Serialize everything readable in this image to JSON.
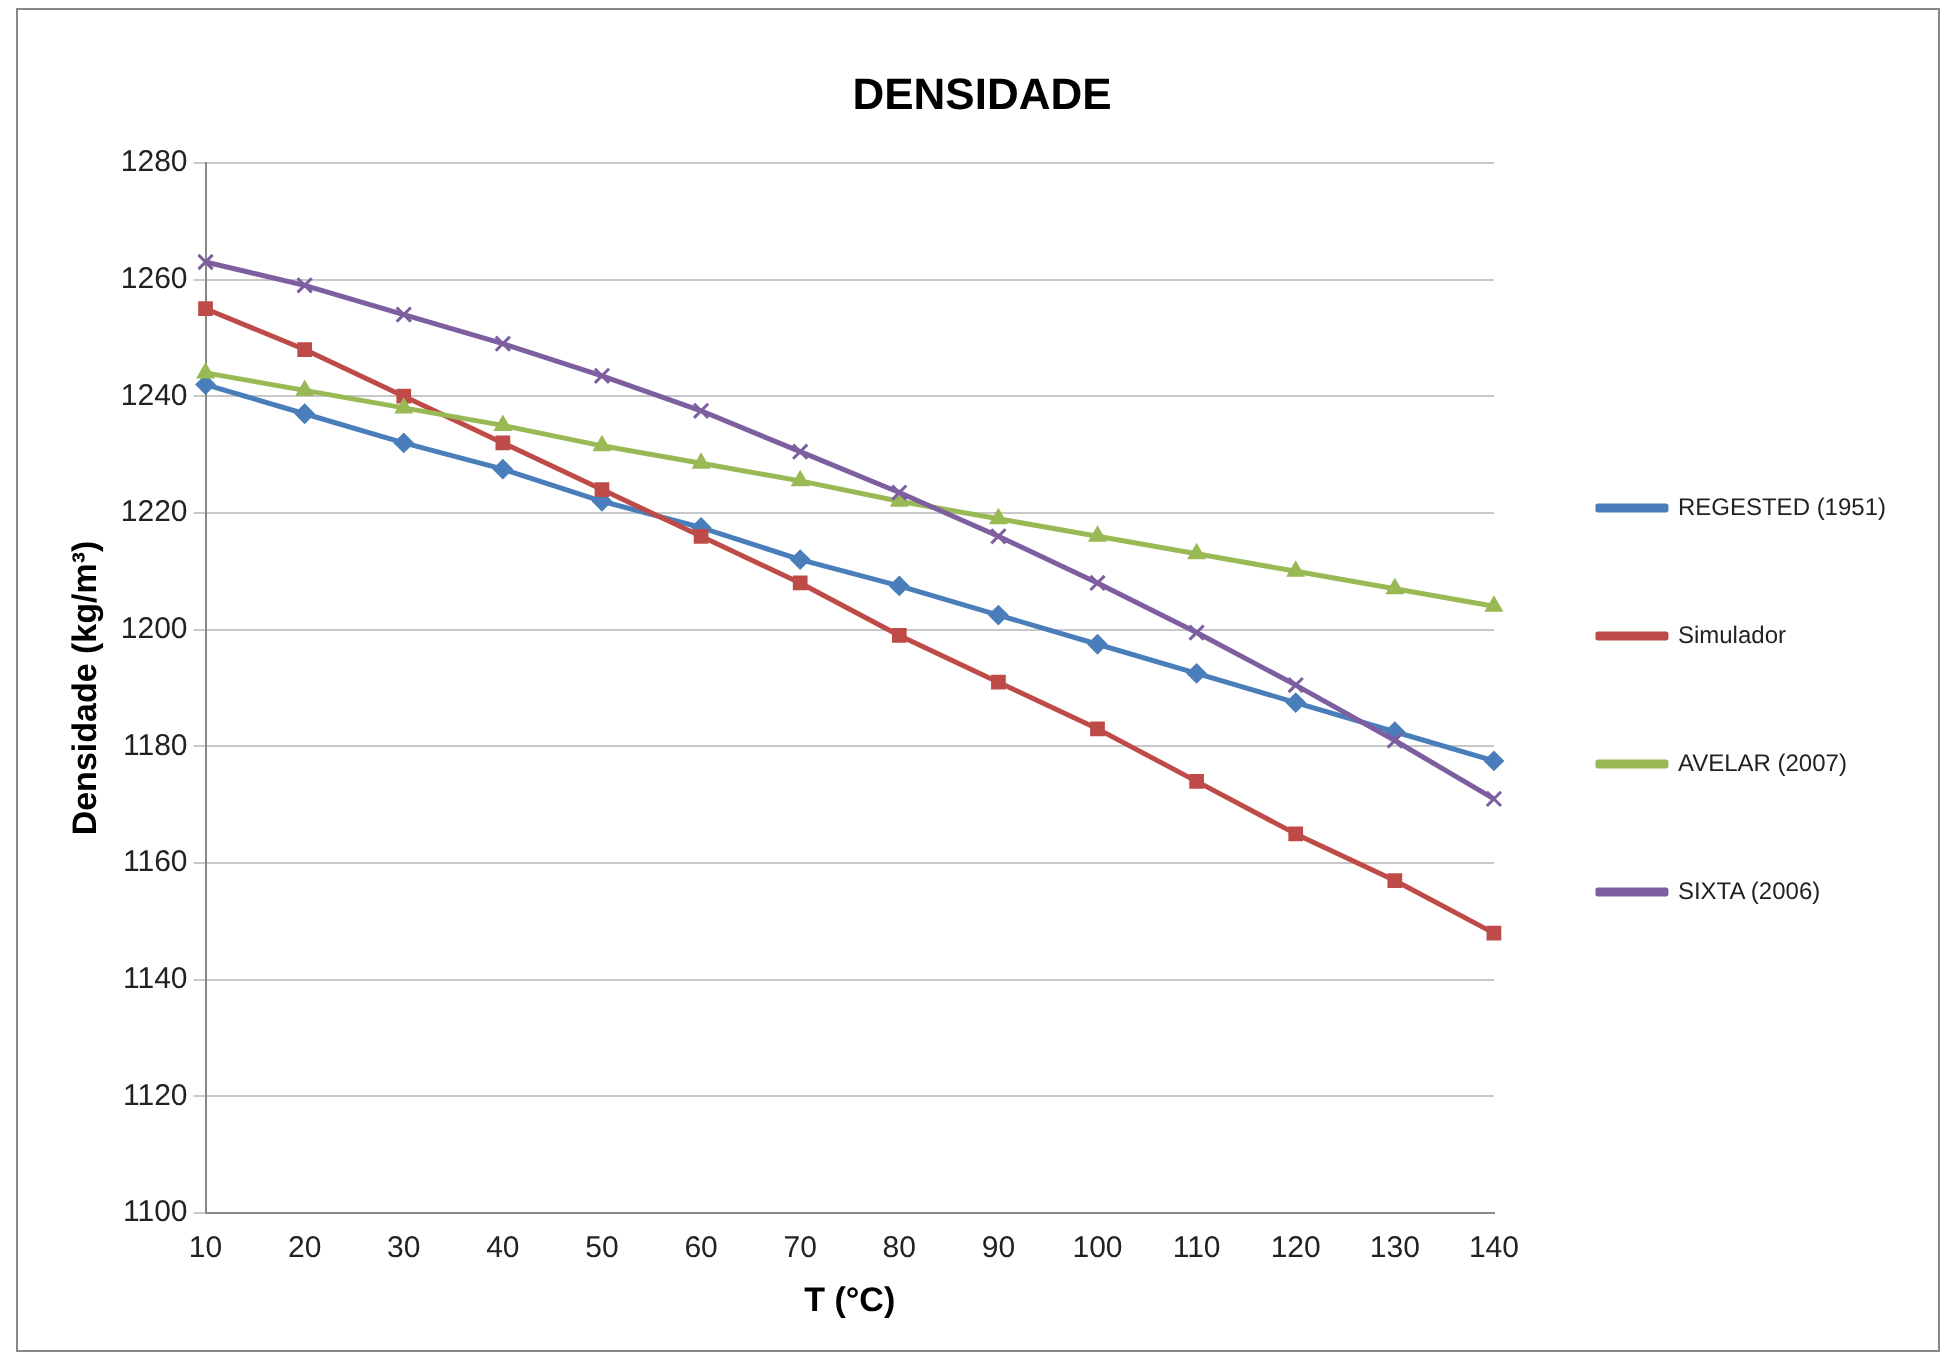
{
  "chart_data": {
    "type": "line",
    "title": "DENSIDADE",
    "xlabel": "T (°C)",
    "ylabel": "Densidade (kg/m³)",
    "categories": [
      "10",
      "20",
      "30",
      "40",
      "50",
      "60",
      "70",
      "80",
      "90",
      "100",
      "110",
      "120",
      "130",
      "140"
    ],
    "series": [
      {
        "name": "REGESTED (1951)",
        "color": "#4a7ebb",
        "marker": "diamond",
        "values": [
          1242,
          1237,
          1232,
          1227.5,
          1222,
          1217.5,
          1212,
          1207.5,
          1202.5,
          1197.5,
          1192.5,
          1187.5,
          1182.5,
          1177.5
        ]
      },
      {
        "name": "Simulador",
        "color": "#be4b48",
        "marker": "square",
        "values": [
          1255,
          1248,
          1240,
          1232,
          1224,
          1216,
          1208,
          1199,
          1191,
          1183,
          1174,
          1165,
          1157,
          1148
        ]
      },
      {
        "name": "AVELAR (2007)",
        "color": "#98b954",
        "marker": "triangle",
        "values": [
          1244,
          1241,
          1238,
          1235,
          1231.5,
          1228.5,
          1225.5,
          1222,
          1219,
          1216,
          1213,
          1210,
          1207,
          1204
        ]
      },
      {
        "name": "SIXTA (2006)",
        "color": "#7d5fa0",
        "marker": "cross",
        "values": [
          1263,
          1259,
          1254,
          1249,
          1243.5,
          1237.5,
          1230.5,
          1223.5,
          1216,
          1208,
          1199.5,
          1190.5,
          1181,
          1171
        ]
      }
    ],
    "ylim": [
      1100,
      1280
    ],
    "yticks": [
      1100,
      1120,
      1140,
      1160,
      1180,
      1200,
      1220,
      1240,
      1260,
      1280
    ],
    "grid": "y",
    "legend": "right",
    "line_style": "solid"
  }
}
